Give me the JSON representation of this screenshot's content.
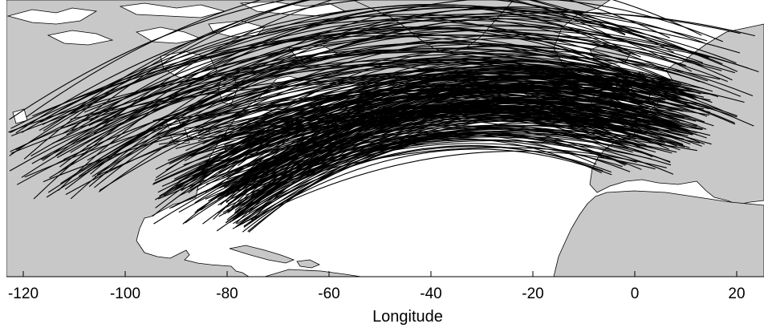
{
  "map": {
    "xlabel": "Longitude",
    "x_range": [
      -124,
      26
    ],
    "y_range": [
      8,
      68
    ],
    "ticks": [
      {
        "value": -120,
        "label": "-120"
      },
      {
        "value": -100,
        "label": "-100"
      },
      {
        "value": -80,
        "label": "-80"
      },
      {
        "value": -60,
        "label": "-60"
      },
      {
        "value": -40,
        "label": "-40"
      },
      {
        "value": -20,
        "label": "-20"
      },
      {
        "value": 0,
        "label": "0"
      },
      {
        "value": 20,
        "label": "20"
      }
    ],
    "colors": {
      "land": "#c8c8c8",
      "coast": "#000000",
      "water": "#ffffff",
      "tracks": "#000000"
    }
  }
}
